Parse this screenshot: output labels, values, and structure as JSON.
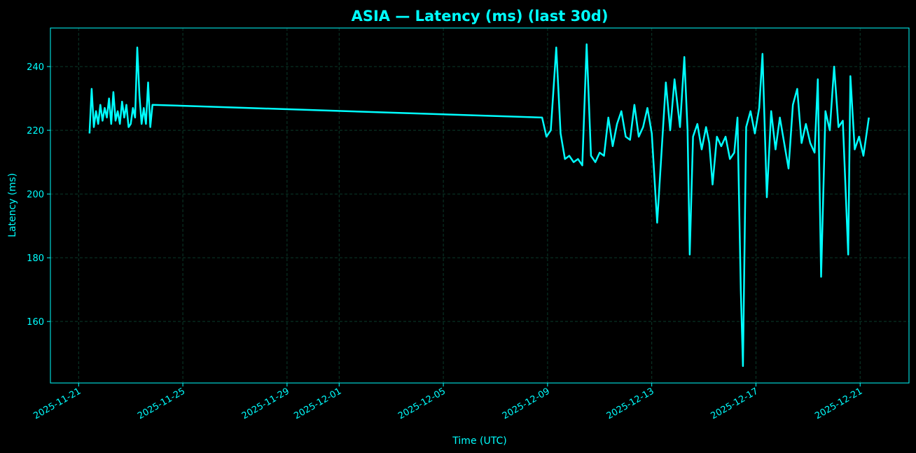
{
  "chart_data": {
    "type": "line",
    "title": "ASIA — Latency (ms) (last 30d)",
    "xlabel": "Time (UTC)",
    "ylabel": "Latency (ms)",
    "grid": true,
    "series": [
      {
        "name": "ASIA",
        "color": "#00ffff",
        "x": [
          "2025-11-21T10:00",
          "2025-11-21T12:00",
          "2025-11-21T14:00",
          "2025-11-21T16:00",
          "2025-11-21T18:00",
          "2025-11-21T20:00",
          "2025-11-21T22:00",
          "2025-11-22T00:00",
          "2025-11-22T02:00",
          "2025-11-22T04:00",
          "2025-11-22T06:00",
          "2025-11-22T08:00",
          "2025-11-22T10:00",
          "2025-11-22T12:00",
          "2025-11-22T14:00",
          "2025-11-22T16:00",
          "2025-11-22T18:00",
          "2025-11-22T20:00",
          "2025-11-22T22:00",
          "2025-11-23T00:00",
          "2025-11-23T02:00",
          "2025-11-23T04:00",
          "2025-11-23T06:00",
          "2025-11-23T08:00",
          "2025-11-23T10:00",
          "2025-11-23T12:00",
          "2025-11-23T14:00",
          "2025-11-23T16:00",
          "2025-11-23T18:00",
          "2025-11-23T20:00",
          "2025-12-08T19:00",
          "2025-12-08T23:00",
          "2025-12-09T03:00",
          "2025-12-09T08:00",
          "2025-12-09T12:00",
          "2025-12-09T16:00",
          "2025-12-09T20:00",
          "2025-12-10T00:00",
          "2025-12-10T04:00",
          "2025-12-10T08:00",
          "2025-12-10T12:00",
          "2025-12-10T16:00",
          "2025-12-10T20:00",
          "2025-12-11T00:00",
          "2025-12-11T04:00",
          "2025-12-11T08:00",
          "2025-12-11T12:00",
          "2025-12-11T16:00",
          "2025-12-11T20:00",
          "2025-12-12T00:00",
          "2025-12-12T04:00",
          "2025-12-12T08:00",
          "2025-12-12T12:00",
          "2025-12-12T16:00",
          "2025-12-12T20:00",
          "2025-12-13T00:00",
          "2025-12-13T05:00",
          "2025-12-13T09:00",
          "2025-12-13T13:00",
          "2025-12-13T17:00",
          "2025-12-13T21:00",
          "2025-12-14T02:00",
          "2025-12-14T06:00",
          "2025-12-14T09:00",
          "2025-12-14T11:00",
          "2025-12-14T14:00",
          "2025-12-14T18:00",
          "2025-12-14T22:00",
          "2025-12-15T02:00",
          "2025-12-15T05:00",
          "2025-12-15T08:00",
          "2025-12-15T12:00",
          "2025-12-15T16:00",
          "2025-12-15T20:00",
          "2025-12-16T00:00",
          "2025-12-16T04:00",
          "2025-12-16T07:00",
          "2025-12-16T10:00",
          "2025-12-16T12:00",
          "2025-12-16T15:00",
          "2025-12-16T19:00",
          "2025-12-16T23:00",
          "2025-12-17T03:00",
          "2025-12-17T06:00",
          "2025-12-17T10:00",
          "2025-12-17T14:00",
          "2025-12-17T18:00",
          "2025-12-17T22:00",
          "2025-12-18T02:00",
          "2025-12-18T06:00",
          "2025-12-18T10:00",
          "2025-12-18T14:00",
          "2025-12-18T18:00",
          "2025-12-18T22:00",
          "2025-12-19T02:00",
          "2025-12-19T06:00",
          "2025-12-19T09:00",
          "2025-12-19T12:00",
          "2025-12-19T16:00",
          "2025-12-19T20:00",
          "2025-12-20T00:00",
          "2025-12-20T04:00",
          "2025-12-20T08:00",
          "2025-12-20T13:00",
          "2025-12-20T15:00",
          "2025-12-20T19:00",
          "2025-12-20T23:00",
          "2025-12-21T03:00",
          "2025-12-21T08:00"
        ],
        "values": [
          219,
          233,
          221,
          226,
          222,
          228,
          223,
          227,
          224,
          230,
          222,
          232,
          223,
          226,
          222,
          229,
          224,
          228,
          221,
          222,
          227,
          224,
          246,
          231,
          222,
          227,
          222,
          235,
          221,
          228,
          224,
          218,
          220,
          246,
          219,
          211,
          212,
          210,
          211,
          209,
          247,
          212,
          210,
          213,
          212,
          224,
          215,
          222,
          226,
          218,
          217,
          228,
          218,
          221,
          227,
          219,
          191,
          213,
          235,
          220,
          236,
          221,
          243,
          220,
          181,
          218,
          222,
          214,
          221,
          216,
          203,
          218,
          215,
          218,
          211,
          213,
          224,
          170,
          146,
          221,
          226,
          219,
          227,
          244,
          199,
          226,
          214,
          224,
          216,
          208,
          228,
          233,
          216,
          222,
          216,
          213,
          236,
          174,
          226,
          220,
          240,
          221,
          223,
          181,
          237,
          214,
          218,
          212,
          224
        ]
      }
    ],
    "xlim": [
      "2025-11-19T22:00",
      "2025-12-22T21:00"
    ],
    "xticks": [
      "2025-11-21",
      "2025-11-25",
      "2025-11-29",
      "2025-12-01",
      "2025-12-05",
      "2025-12-09",
      "2025-12-13",
      "2025-12-17",
      "2025-12-21"
    ],
    "ylim": [
      140.7,
      252.1
    ],
    "yticks": [
      160,
      180,
      200,
      220,
      240
    ]
  }
}
